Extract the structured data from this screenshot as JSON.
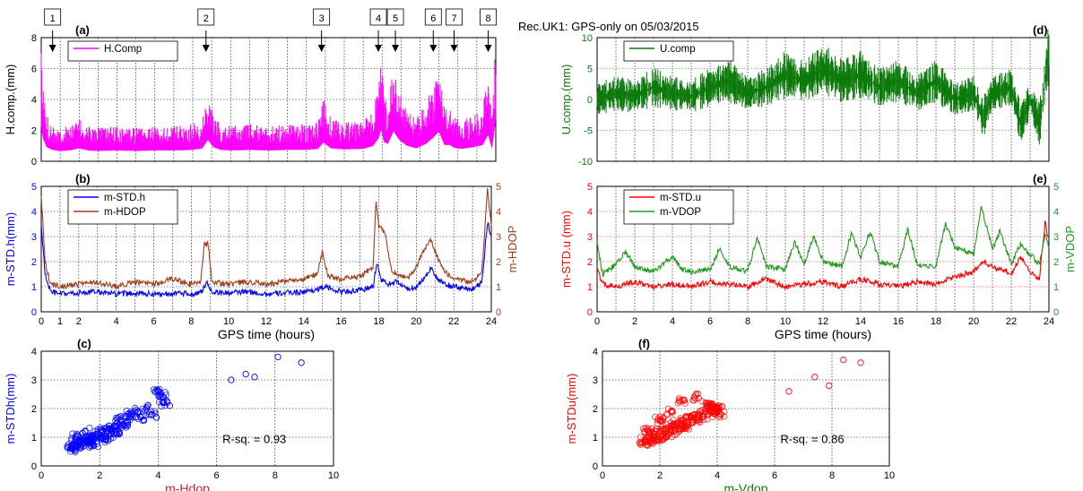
{
  "figure_title": "Rec.UK1: GPS-only on 05/03/2015",
  "colors": {
    "magenta": "#ff00ff",
    "dark_green": "#0b7a0b",
    "green": "#1f9a1f",
    "blue": "#0000ff",
    "brown": "#a0401a",
    "red": "#ff0000",
    "grid": "#000000",
    "axis_label_red": "#cc2222"
  },
  "chart_data": [
    {
      "id": "a",
      "panel_label": "(a)",
      "type": "line",
      "ylabel": "H.comp.(mm)",
      "xlim": [
        0,
        24
      ],
      "ylim": [
        0,
        8
      ],
      "yticks": [
        0,
        2,
        4,
        6,
        8
      ],
      "grid": true,
      "legend": {
        "position": "top-left",
        "entries": [
          "H.Comp"
        ]
      },
      "event_markers": [
        {
          "label": "1",
          "hour": 0.6
        },
        {
          "label": "2",
          "hour": 8.7
        },
        {
          "label": "3",
          "hour": 14.8
        },
        {
          "label": "4",
          "hour": 17.8
        },
        {
          "label": "5",
          "hour": 18.7
        },
        {
          "label": "6",
          "hour": 20.7
        },
        {
          "label": "7",
          "hour": 21.8
        },
        {
          "label": "8",
          "hour": 23.6
        }
      ],
      "series": [
        {
          "name": "H.Comp",
          "x": [
            0,
            0.1,
            0.3,
            0.6,
            1,
            1.5,
            2,
            2.5,
            3,
            4,
            5,
            6,
            7,
            8,
            8.5,
            8.8,
            9.1,
            9.5,
            10,
            11,
            12,
            13,
            14,
            14.6,
            14.9,
            15.3,
            16,
            17,
            17.5,
            17.8,
            17.95,
            18.1,
            18.3,
            18.6,
            18.9,
            19.3,
            19.8,
            20.3,
            20.7,
            21.0,
            21.3,
            21.6,
            21.8,
            22.2,
            22.8,
            23.3,
            23.6,
            23.8,
            24
          ],
          "y": [
            6.3,
            4.2,
            2.6,
            2.1,
            1.9,
            2.0,
            2.4,
            2.0,
            1.9,
            2.0,
            1.9,
            2.0,
            2.0,
            2.1,
            2.4,
            4.0,
            2.6,
            2.1,
            2.0,
            2.1,
            2.0,
            2.1,
            2.1,
            2.3,
            3.5,
            2.4,
            2.2,
            2.3,
            2.8,
            4.2,
            6.0,
            3.6,
            3.2,
            5.6,
            4.0,
            2.9,
            2.4,
            3.2,
            4.4,
            5.5,
            3.0,
            3.0,
            2.5,
            2.3,
            2.6,
            3.0,
            5.0,
            2.4,
            7.8
          ]
        }
      ]
    },
    {
      "id": "b",
      "panel_label": "(b)",
      "type": "line",
      "xlabel": "GPS time (hours)",
      "ylabel": "m-STD.h(mm)",
      "ylabel_right": "m-HDOP",
      "xlim": [
        0,
        24
      ],
      "ylim": [
        0,
        5
      ],
      "ylim_right": [
        0,
        5
      ],
      "xticks": [
        0,
        1,
        2,
        4,
        6,
        8,
        10,
        12,
        14,
        16,
        18,
        20,
        22,
        24
      ],
      "yticks": [
        0,
        1,
        2,
        3,
        4,
        5
      ],
      "yticks_right": [
        0,
        1,
        2,
        3,
        4,
        5
      ],
      "grid": true,
      "legend": {
        "position": "top-left",
        "entries": [
          "m-STD.h",
          "m-HDOP"
        ]
      },
      "series": [
        {
          "name": "m-STD.h",
          "axis": "left",
          "x": [
            0,
            0.2,
            0.5,
            1,
            2,
            3,
            4,
            5,
            6,
            7,
            8,
            8.6,
            8.8,
            9.1,
            10,
            11,
            12,
            13,
            14,
            14.8,
            15.1,
            16,
            17,
            17.7,
            17.9,
            18.1,
            18.5,
            19,
            19.5,
            20,
            20.5,
            20.8,
            21.1,
            21.5,
            22,
            23,
            23.5,
            23.8,
            24
          ],
          "y": [
            3.5,
            1.5,
            0.8,
            0.7,
            0.75,
            0.8,
            0.7,
            0.75,
            0.7,
            0.75,
            0.7,
            0.8,
            1.2,
            0.8,
            0.75,
            0.8,
            0.7,
            0.75,
            0.8,
            0.9,
            1.0,
            0.8,
            0.85,
            1.0,
            2.0,
            1.3,
            1.1,
            1.2,
            0.9,
            1.0,
            1.4,
            1.8,
            1.3,
            1.1,
            1.0,
            0.9,
            1.2,
            3.6,
            3.0
          ]
        },
        {
          "name": "m-HDOP",
          "axis": "right",
          "x": [
            0,
            0.2,
            0.5,
            1,
            2,
            3,
            4,
            5,
            6,
            7,
            8,
            8.5,
            8.7,
            8.9,
            9.1,
            10,
            11,
            12,
            13,
            14,
            14.7,
            15.0,
            15.3,
            16,
            17,
            17.7,
            17.85,
            18.0,
            18.3,
            18.7,
            19,
            19.5,
            20,
            20.5,
            20.8,
            21.1,
            21.5,
            22,
            23,
            23.5,
            23.8,
            24
          ],
          "y": [
            4.7,
            2.0,
            1.1,
            1.0,
            1.1,
            1.2,
            1.0,
            1.2,
            1.1,
            1.3,
            1.1,
            1.2,
            2.7,
            2.7,
            1.2,
            1.1,
            1.2,
            1.1,
            1.2,
            1.3,
            1.5,
            2.4,
            1.4,
            1.3,
            1.4,
            1.8,
            4.5,
            3.4,
            3.2,
            1.6,
            1.5,
            1.3,
            1.8,
            2.6,
            2.9,
            2.2,
            1.6,
            1.3,
            1.2,
            1.6,
            4.9,
            3.5
          ]
        }
      ]
    },
    {
      "id": "c",
      "panel_label": "(c)",
      "type": "scatter",
      "xlabel": "m-Hdop",
      "ylabel": "m-STDh(mm)",
      "xlim": [
        0,
        10
      ],
      "ylim": [
        0,
        4
      ],
      "xticks": [
        0,
        2,
        4,
        6,
        8,
        10
      ],
      "yticks": [
        0,
        1,
        2,
        3,
        4
      ],
      "grid": true,
      "annotation": "R-sq. = 0.93",
      "series": [
        {
          "name": "",
          "x": [
            1.0,
            1.1,
            1.2,
            1.3,
            1.4,
            1.5,
            1.6,
            1.7,
            1.8,
            1.9,
            2.0,
            2.1,
            2.2,
            2.3,
            2.4,
            2.5,
            2.6,
            2.7,
            2.8,
            2.9,
            3.0,
            1.2,
            1.5,
            1.8,
            2.2,
            2.6,
            3.2,
            3.4,
            3.6,
            3.8,
            4.0,
            4.2,
            4.4,
            4.1,
            6.5,
            7.0,
            7.3,
            8.1,
            8.9
          ],
          "y": [
            0.6,
            0.7,
            0.65,
            0.8,
            0.75,
            0.9,
            0.85,
            1.0,
            0.95,
            1.1,
            1.0,
            1.2,
            1.15,
            1.3,
            1.25,
            1.4,
            1.5,
            1.6,
            1.45,
            1.7,
            1.8,
            1.0,
            1.2,
            0.7,
            0.9,
            1.1,
            1.9,
            1.7,
            2.0,
            1.8,
            2.6,
            2.2,
            2.1,
            2.5,
            3.0,
            3.2,
            3.1,
            3.8,
            3.6
          ]
        }
      ]
    },
    {
      "id": "d",
      "panel_label": "(d)",
      "type": "line",
      "ylabel": "U.comp.(mm)",
      "xlim": [
        0,
        24
      ],
      "ylim": [
        -10,
        10
      ],
      "yticks": [
        -10,
        -5,
        0,
        5,
        10
      ],
      "grid": true,
      "legend": {
        "position": "top-left",
        "entries": [
          "U.comp"
        ]
      },
      "series": [
        {
          "name": "U.comp",
          "x": [
            0,
            1,
            2,
            3,
            4,
            5,
            6,
            7,
            8,
            9,
            10,
            11,
            12,
            13,
            14,
            15,
            16,
            17,
            18,
            19,
            20,
            20.5,
            21,
            22,
            22.5,
            23,
            23.5,
            24
          ],
          "y": [
            0,
            1,
            0.5,
            2,
            1,
            0.5,
            2,
            3,
            1,
            2,
            4,
            3,
            5,
            3,
            4,
            2,
            3,
            1,
            3,
            0,
            1,
            -3,
            1,
            2,
            -4,
            0,
            -4,
            8
          ]
        }
      ]
    },
    {
      "id": "e",
      "panel_label": "(e)",
      "type": "line",
      "xlabel": "GPS time (hours)",
      "ylabel": "m-STD.u (mm)",
      "ylabel_right": "m-VDOP",
      "xlim": [
        0,
        24
      ],
      "ylim": [
        0,
        5
      ],
      "ylim_right": [
        0,
        5
      ],
      "xticks": [
        0,
        2,
        4,
        6,
        8,
        10,
        12,
        14,
        16,
        18,
        20,
        22,
        24
      ],
      "yticks": [
        0,
        1,
        2,
        3,
        4,
        5
      ],
      "yticks_right": [
        0,
        1,
        2,
        3,
        4,
        5
      ],
      "grid": true,
      "legend": {
        "position": "top-left",
        "entries": [
          "m-STD.u",
          "m-VDOP"
        ]
      },
      "series": [
        {
          "name": "m-STD.u",
          "axis": "left",
          "x": [
            0,
            0.3,
            1,
            2,
            3,
            4,
            5,
            6,
            7,
            8,
            9,
            10,
            11,
            12,
            13,
            14,
            15,
            16,
            17,
            18,
            19,
            20,
            20.5,
            21,
            22,
            22.5,
            23,
            23.5,
            23.8,
            24
          ],
          "y": [
            1.8,
            1.1,
            1.0,
            1.2,
            1.0,
            1.1,
            1.0,
            1.2,
            1.1,
            1.0,
            1.3,
            1.0,
            1.1,
            1.2,
            1.0,
            1.3,
            1.1,
            1.0,
            1.2,
            1.1,
            1.4,
            1.6,
            2.0,
            1.8,
            1.5,
            2.2,
            1.6,
            1.3,
            3.6,
            2.8
          ]
        },
        {
          "name": "m-VDOP",
          "axis": "right",
          "x": [
            0,
            0.3,
            1,
            1.5,
            2,
            3,
            4,
            4.5,
            5,
            6,
            6.5,
            7,
            8,
            8.5,
            9,
            10,
            10.5,
            11,
            11.5,
            12,
            13,
            13.5,
            14,
            14.5,
            15,
            16,
            16.5,
            17,
            18,
            18.5,
            19,
            20,
            20.4,
            21,
            21.4,
            22,
            22.5,
            23,
            23.5,
            23.8,
            24
          ],
          "y": [
            2.7,
            1.5,
            1.9,
            2.4,
            1.8,
            1.6,
            2.2,
            1.7,
            1.6,
            1.7,
            2.5,
            1.8,
            1.6,
            3.0,
            1.8,
            1.7,
            2.8,
            1.9,
            3.0,
            2.0,
            1.8,
            3.1,
            2.2,
            3.2,
            2.0,
            1.8,
            3.3,
            1.9,
            1.8,
            3.5,
            2.6,
            2.3,
            4.2,
            2.5,
            3.2,
            1.9,
            2.7,
            2.3,
            1.9,
            3.1,
            2.6
          ]
        }
      ]
    },
    {
      "id": "f",
      "panel_label": "(f)",
      "type": "scatter",
      "xlabel": "m-Vdop",
      "ylabel": "m-STDu(mm)",
      "xlim": [
        0,
        10
      ],
      "ylim": [
        0,
        4
      ],
      "xticks": [
        0,
        2,
        4,
        6,
        8,
        10
      ],
      "yticks": [
        0,
        1,
        2,
        3,
        4
      ],
      "grid": true,
      "annotation": "R-sq. = 0.86",
      "series": [
        {
          "name": "",
          "x": [
            1.4,
            1.5,
            1.6,
            1.7,
            1.8,
            1.9,
            2.0,
            2.1,
            2.2,
            2.3,
            2.4,
            2.5,
            2.6,
            2.7,
            2.8,
            2.9,
            3.0,
            3.1,
            3.2,
            3.3,
            3.4,
            3.5,
            3.6,
            3.7,
            3.8,
            3.9,
            4.0,
            4.1,
            1.6,
            2.0,
            2.4,
            2.8,
            3.2,
            3.6,
            4.0,
            6.5,
            7.4,
            7.9,
            8.4,
            9.0
          ],
          "y": [
            0.8,
            0.9,
            1.0,
            0.85,
            1.1,
            0.95,
            1.2,
            1.0,
            1.3,
            1.1,
            1.4,
            1.2,
            1.5,
            1.3,
            1.6,
            1.4,
            1.7,
            1.5,
            1.8,
            1.6,
            1.9,
            1.7,
            2.0,
            1.8,
            2.1,
            1.9,
            2.0,
            1.8,
            1.2,
            1.6,
            1.9,
            2.3,
            2.4,
            2.2,
            1.9,
            2.6,
            3.1,
            2.8,
            3.7,
            3.6
          ]
        }
      ]
    }
  ]
}
